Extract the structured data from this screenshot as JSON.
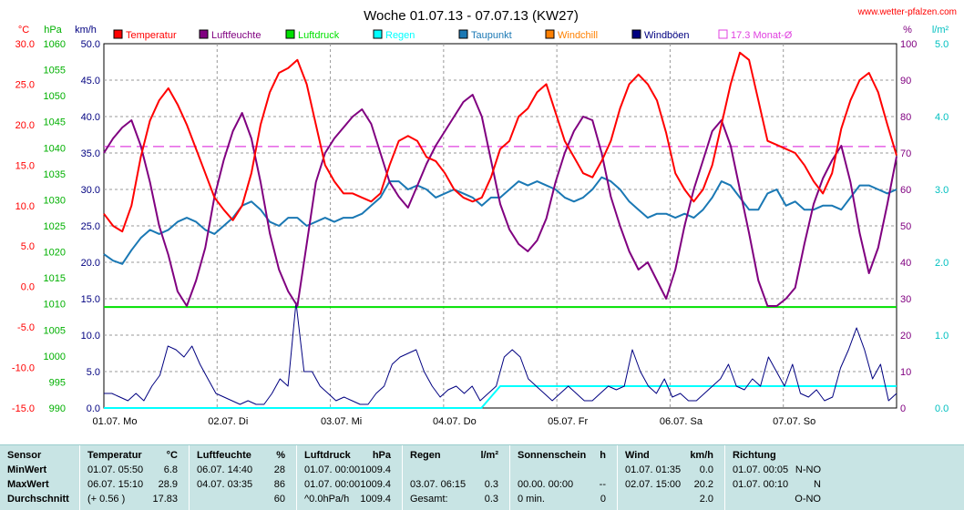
{
  "title": "Woche 01.07.13 - 07.07.13 (KW27)",
  "source": "www.wetter-pfalzen.com",
  "axes": {
    "units": {
      "temp": "°C",
      "hpa": "hPa",
      "kmh": "km/h",
      "pct": "%",
      "rain": "l/m²"
    },
    "temp_ticks": [
      "30.0",
      "25.0",
      "20.0",
      "15.0",
      "10.0",
      "5.0",
      "0.0",
      "-5.0",
      "-10.0",
      "-15.0"
    ],
    "hpa_ticks": [
      "1060",
      "1055",
      "1050",
      "1045",
      "1040",
      "1035",
      "1030",
      "1025",
      "1020",
      "1015",
      "1010",
      "1005",
      "1000",
      "995",
      "990"
    ],
    "kmh_ticks": [
      "50.0",
      "45.0",
      "40.0",
      "35.0",
      "30.0",
      "25.0",
      "20.0",
      "15.0",
      "10.0",
      "5.0",
      "0.0"
    ],
    "pct_ticks": [
      "100",
      "90",
      "80",
      "70",
      "60",
      "50",
      "40",
      "30",
      "20",
      "10",
      "0"
    ],
    "rain_ticks": [
      "5.0",
      "4.0",
      "3.0",
      "2.0",
      "1.0",
      "0.0"
    ],
    "day_labels": [
      "01.07. Mo",
      "02.07. Di",
      "03.07. Mi",
      "04.07. Do",
      "05.07. Fr",
      "06.07. Sa",
      "07.07. So"
    ]
  },
  "legend": [
    {
      "label": "Temperatur",
      "color": "#ff0000"
    },
    {
      "label": "Luftfeuchte",
      "color": "#800080"
    },
    {
      "label": "Luftdruck",
      "color": "#00e000"
    },
    {
      "label": "Regen",
      "color": "#00ffff"
    },
    {
      "label": "Taupunkt",
      "color": "#1a78b4"
    },
    {
      "label": "Windchill",
      "color": "#ff8000"
    },
    {
      "label": "Windböen",
      "color": "#000080"
    },
    {
      "label": "17.3 Monat-Ø",
      "color": "#e040e0"
    }
  ],
  "chart_data": {
    "type": "line",
    "title": "Woche 01.07.13 - 07.07.13 (KW27)",
    "x_range": [
      "01.07. 00:00",
      "08.07. 00:00"
    ],
    "x_step_hours": 4,
    "ylim_temp": [
      -15,
      30
    ],
    "ylim_hpa": [
      990,
      1060
    ],
    "ylim_kmh": [
      0,
      50
    ],
    "ylim_pct": [
      0,
      100
    ],
    "ylim_rain": [
      0,
      5
    ],
    "grid": true,
    "legend_position": "top",
    "monthly_mean": 17.3,
    "series": [
      {
        "name": "Temperatur",
        "unit": "°C",
        "color": "#ff0000",
        "values": [
          9,
          7.5,
          6.8,
          10,
          16,
          20.5,
          23,
          24.5,
          22.5,
          20,
          17,
          14,
          11,
          9.5,
          8.2,
          10,
          14,
          20,
          24,
          26.4,
          27,
          28,
          25,
          20,
          15,
          13,
          11.5,
          11.5,
          11,
          10.5,
          11.5,
          15,
          18,
          18.6,
          18,
          16,
          15.5,
          14,
          12,
          11,
          10.5,
          11,
          13.5,
          17,
          18,
          21,
          22,
          24,
          25,
          21.5,
          18,
          16,
          14,
          13.5,
          15.5,
          18,
          22,
          25,
          26.2,
          25,
          23,
          19,
          14,
          12,
          10.5,
          12,
          15,
          20,
          25,
          28.9,
          28,
          23,
          18,
          17.5,
          17,
          16.5,
          15,
          13,
          11.5,
          14,
          19.5,
          23,
          25.5,
          26.4,
          24,
          20,
          16.2
        ]
      },
      {
        "name": "Luftfeuchte",
        "unit": "%",
        "color": "#800080",
        "values": [
          70,
          74,
          77,
          79,
          72,
          62,
          50,
          42,
          32,
          28,
          35,
          44,
          58,
          68,
          76,
          81,
          74,
          62,
          48,
          38,
          32,
          28,
          45,
          62,
          70,
          74,
          77,
          80,
          82,
          78,
          70,
          62,
          58,
          55,
          61,
          67,
          72,
          76,
          80,
          84,
          86,
          80,
          68,
          56,
          49,
          45,
          43,
          46,
          52,
          62,
          70,
          76,
          80,
          79,
          70,
          58,
          50,
          43,
          38,
          40,
          35,
          30,
          38,
          50,
          60,
          68,
          76,
          79,
          72,
          60,
          48,
          35,
          28,
          28,
          30,
          33,
          45,
          56,
          63,
          68,
          72,
          62,
          48,
          37,
          44,
          56,
          69
        ]
      },
      {
        "name": "Luftdruck",
        "unit": "hPa",
        "color": "#00e000",
        "values": [
          1009.4,
          1009.4,
          1009.4,
          1009.4,
          1009.4,
          1009.4,
          1009.4,
          1009.4,
          1009.4,
          1009.4,
          1009.4,
          1009.4,
          1009.4,
          1009.4,
          1009.4,
          1009.4,
          1009.4,
          1009.4,
          1009.4,
          1009.4,
          1009.4,
          1009.4,
          1009.4,
          1009.4,
          1009.4,
          1009.4,
          1009.4,
          1009.4,
          1009.4,
          1009.4,
          1009.4,
          1009.4,
          1009.4,
          1009.4,
          1009.4,
          1009.4,
          1009.4,
          1009.4,
          1009.4,
          1009.4,
          1009.4,
          1009.4,
          1009.4
        ]
      },
      {
        "name": "Regen",
        "unit": "l/m²",
        "color": "#00ffff",
        "values": [
          0,
          0,
          0,
          0,
          0,
          0,
          0,
          0,
          0,
          0,
          0,
          0,
          0,
          0,
          0,
          0,
          0,
          0,
          0,
          0,
          0,
          0.3,
          0.3,
          0.3,
          0.3,
          0.3,
          0.3,
          0.3,
          0.3,
          0.3,
          0.3,
          0.3,
          0.3,
          0.3,
          0.3,
          0.3,
          0.3,
          0.3,
          0.3,
          0.3,
          0.3,
          0.3,
          0.3
        ]
      },
      {
        "name": "Taupunkt",
        "unit": "°C",
        "color": "#1a78b4",
        "values": [
          4,
          3.2,
          2.8,
          4.5,
          6,
          7,
          6.5,
          7,
          8,
          8.5,
          8,
          7,
          6.5,
          7.5,
          8.5,
          10,
          10.5,
          9.5,
          8,
          7.5,
          8.5,
          8.5,
          7.5,
          8,
          8.5,
          8,
          8.5,
          8.5,
          9,
          10,
          11,
          13,
          13,
          12,
          12.5,
          12,
          11,
          11.5,
          12,
          11.5,
          11,
          10,
          11,
          11,
          12,
          13,
          12.5,
          13,
          12.5,
          12,
          11,
          10.5,
          11,
          12,
          13.5,
          13,
          12,
          10.5,
          9.5,
          8.5,
          9,
          9,
          8.5,
          9,
          8.5,
          9.5,
          11,
          13,
          12.5,
          11,
          9.5,
          9.5,
          11.5,
          12,
          10,
          10.5,
          9.5,
          9.5,
          10,
          10,
          9.5,
          11,
          12.5,
          12.5,
          12,
          11.5,
          12
        ]
      },
      {
        "name": "Windböen",
        "unit": "km/h",
        "color": "#000080",
        "values": [
          2,
          2,
          1.5,
          1,
          2,
          1,
          3,
          4.5,
          8.5,
          8,
          7,
          8.5,
          6,
          4,
          2,
          1.5,
          1,
          0.5,
          1,
          0.5,
          0.5,
          2,
          4,
          3,
          14.5,
          5,
          5,
          3,
          2,
          1,
          1.5,
          1,
          0.5,
          0.5,
          2,
          3,
          6,
          7,
          7.5,
          8,
          5,
          3,
          1.5,
          2.5,
          3,
          2,
          3,
          1,
          2,
          3,
          7,
          8,
          7,
          4,
          3,
          2,
          1,
          2,
          3,
          2,
          1,
          1,
          2,
          3,
          2.5,
          3,
          8,
          5,
          3,
          2,
          4,
          1.5,
          2,
          1,
          1,
          2,
          3,
          4,
          6,
          3,
          2.5,
          4,
          3,
          7,
          5,
          3,
          6,
          2,
          1.5,
          2.5,
          1,
          1.5,
          5.5,
          8,
          11,
          8,
          4,
          6,
          1,
          2
        ]
      }
    ]
  },
  "stats": {
    "columns": [
      {
        "header": "Sensor",
        "rows": [
          "MinWert",
          "MaxWert",
          "Durchschnitt"
        ]
      },
      {
        "header": "Temperatur",
        "unit": "°C",
        "rows": [
          [
            "01.07.  05:50",
            "6.8"
          ],
          [
            "06.07.  15:10",
            "28.9"
          ],
          [
            "(+ 0.56 )",
            "17.83"
          ]
        ]
      },
      {
        "header": "Luftfeuchte",
        "unit": "%",
        "rows": [
          [
            "06.07.  14:40",
            "28"
          ],
          [
            "04.07.  03:35",
            "86"
          ],
          [
            "",
            "60"
          ]
        ]
      },
      {
        "header": "Luftdruck",
        "unit": "hPa",
        "rows": [
          [
            "01.07.  00:00",
            "1009.4"
          ],
          [
            "01.07.  00:00",
            "1009.4"
          ],
          [
            "^0.0hPa/h",
            "1009.4"
          ]
        ]
      },
      {
        "header": "Regen",
        "unit": "l/m²",
        "rows": [
          [
            "",
            ""
          ],
          [
            "03.07.  06:15",
            "0.3"
          ],
          [
            "Gesamt:",
            "0.3"
          ]
        ]
      },
      {
        "header": "Sonnenschein",
        "unit": "h",
        "rows": [
          [
            "",
            ""
          ],
          [
            "00.00.  00:00",
            "--"
          ],
          [
            "0 min.",
            "0"
          ]
        ]
      },
      {
        "header": "Wind",
        "unit": "km/h",
        "rows": [
          [
            "01.07.  01:35",
            "0.0"
          ],
          [
            "02.07.  15:00",
            "20.2"
          ],
          [
            "",
            "2.0"
          ]
        ]
      },
      {
        "header": "Richtung",
        "unit": "",
        "rows": [
          [
            "01.07.  00:05",
            "N-NO"
          ],
          [
            "01.07.  00:10",
            "N"
          ],
          [
            "",
            "O-NO"
          ]
        ]
      }
    ]
  }
}
